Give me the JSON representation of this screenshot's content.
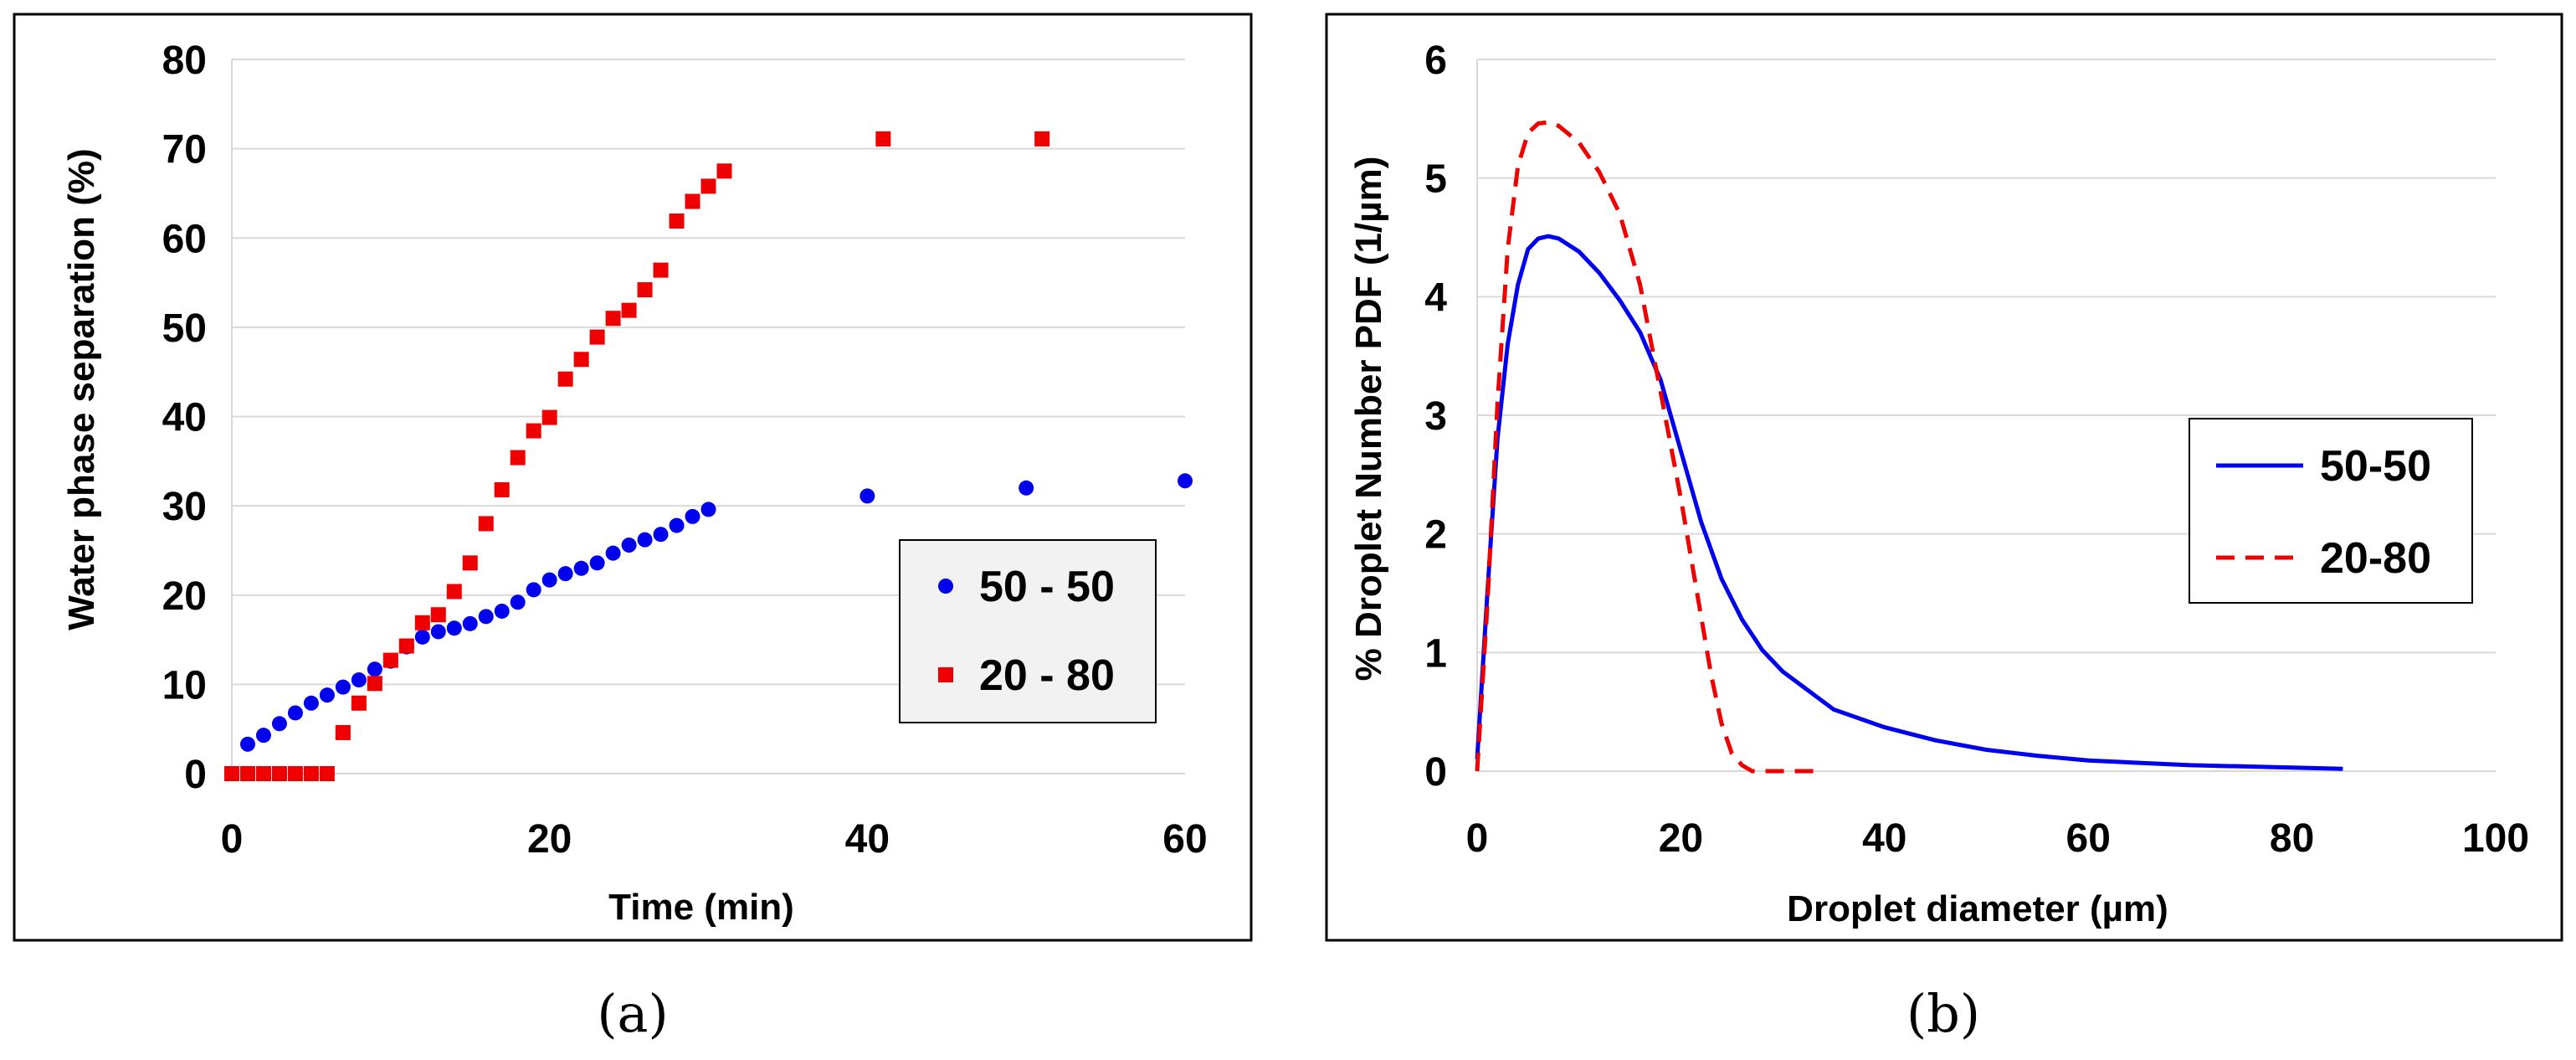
{
  "chart_data": [
    {
      "type": "scatter",
      "caption": "(a)",
      "xlabel": "Time (min)",
      "ylabel": "Water phase separation (%)",
      "xlim": [
        0,
        60
      ],
      "ylim": [
        0,
        80
      ],
      "xticks": [
        0,
        20,
        40,
        60
      ],
      "yticks": [
        0,
        10,
        20,
        30,
        40,
        50,
        60,
        70,
        80
      ],
      "grid": "horizontal",
      "legend_position": "lower-right",
      "series": [
        {
          "name": "50 - 50",
          "color": "#0000ee",
          "marker": "circle",
          "x": [
            0,
            1,
            2,
            3,
            4,
            5,
            6,
            7,
            8,
            9,
            10,
            11,
            12,
            13,
            14,
            15,
            16,
            17,
            18,
            19,
            20,
            21,
            22,
            23,
            24,
            25,
            26,
            27,
            28,
            29,
            30,
            40,
            50,
            60
          ],
          "y": [
            0,
            3.3,
            4.3,
            5.6,
            6.8,
            7.9,
            8.8,
            9.7,
            10.5,
            11.7,
            12.6,
            14.2,
            15.3,
            15.9,
            16.3,
            16.8,
            17.6,
            18.2,
            19.2,
            20.6,
            21.7,
            22.4,
            23.0,
            23.6,
            24.7,
            25.6,
            26.2,
            26.8,
            27.8,
            28.8,
            29.6,
            31.1,
            32.0,
            32.8
          ]
        },
        {
          "name": "20 - 80",
          "color": "#ee0000",
          "marker": "square",
          "x": [
            0,
            1,
            2,
            3,
            4,
            5,
            6,
            7,
            8,
            9,
            10,
            11,
            12,
            13,
            14,
            15,
            16,
            17,
            18,
            19,
            20,
            21,
            22,
            23,
            24,
            25,
            26,
            27,
            28,
            29,
            30,
            31,
            41,
            51
          ],
          "y": [
            0,
            0,
            0,
            0,
            0,
            0,
            0,
            4.6,
            7.9,
            10.1,
            12.7,
            14.3,
            16.9,
            17.8,
            20.4,
            23.6,
            28.0,
            31.8,
            35.4,
            38.4,
            39.9,
            44.2,
            46.4,
            48.9,
            51.0,
            51.9,
            54.2,
            56.4,
            61.9,
            64.1,
            65.8,
            67.5,
            71.1,
            71.1
          ]
        }
      ]
    },
    {
      "type": "line",
      "caption": "(b)",
      "xlabel": "Droplet diameter (µm)",
      "ylabel": "% Droplet Number PDF (1/µm)",
      "xlim": [
        0,
        100
      ],
      "ylim": [
        0,
        6
      ],
      "xticks": [
        0,
        20,
        40,
        60,
        80,
        100
      ],
      "yticks": [
        0,
        1,
        2,
        3,
        4,
        5,
        6
      ],
      "grid": "horizontal",
      "legend_position": "right",
      "series": [
        {
          "name": "50-50",
          "color": "#0000ee",
          "linestyle": "solid",
          "x": [
            0,
            1,
            2,
            3,
            4,
            5,
            6,
            7,
            8,
            10,
            12,
            14,
            16,
            18,
            20,
            22,
            24,
            26,
            28,
            30,
            35,
            40,
            45,
            50,
            55,
            60,
            65,
            70,
            75,
            80,
            85
          ],
          "y": [
            0.1,
            1.5,
            2.8,
            3.6,
            4.1,
            4.4,
            4.49,
            4.51,
            4.49,
            4.38,
            4.2,
            3.97,
            3.7,
            3.3,
            2.7,
            2.1,
            1.62,
            1.28,
            1.02,
            0.84,
            0.52,
            0.37,
            0.26,
            0.18,
            0.13,
            0.09,
            0.07,
            0.05,
            0.04,
            0.03,
            0.02
          ]
        },
        {
          "name": "20-80",
          "color": "#ee0000",
          "linestyle": "dashed",
          "x": [
            0,
            1,
            2,
            3,
            4,
            5,
            6,
            7,
            8,
            10,
            12,
            14,
            16,
            18,
            20,
            22,
            23,
            24,
            25,
            26,
            27,
            28,
            30,
            32,
            33,
            34
          ],
          "y": [
            0.0,
            1.4,
            3.1,
            4.4,
            5.1,
            5.38,
            5.46,
            5.47,
            5.44,
            5.3,
            5.05,
            4.7,
            4.1,
            3.2,
            2.3,
            1.3,
            0.8,
            0.4,
            0.15,
            0.05,
            0.0,
            0.0,
            0.0,
            0.0,
            0.0,
            0.0
          ]
        }
      ]
    }
  ]
}
